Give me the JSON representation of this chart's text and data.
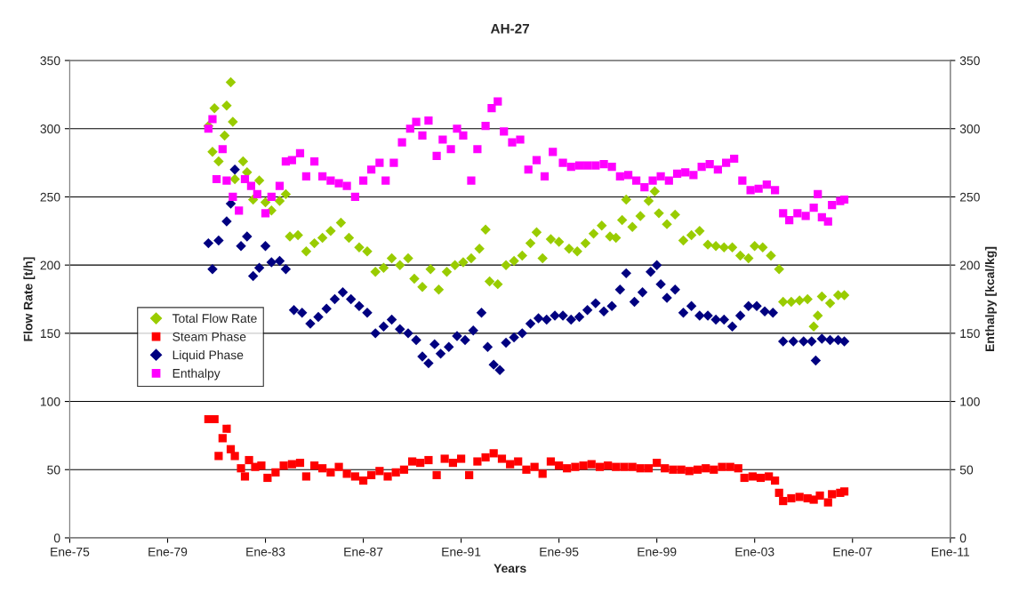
{
  "chart_data": {
    "type": "scatter",
    "title": "AH-27",
    "xlabel": "Years",
    "ylabel": "Flow Rate [t/h]",
    "y2label": "Enthalpy [kcal/kg]",
    "xlim": [
      "1975-01",
      "2011-01"
    ],
    "xticks": [
      {
        "value": "1975-01",
        "label": "Ene-75"
      },
      {
        "value": "1979-01",
        "label": "Ene-79"
      },
      {
        "value": "1983-01",
        "label": "Ene-83"
      },
      {
        "value": "1987-01",
        "label": "Ene-87"
      },
      {
        "value": "1991-01",
        "label": "Ene-91"
      },
      {
        "value": "1995-01",
        "label": "Ene-95"
      },
      {
        "value": "1999-01",
        "label": "Ene-99"
      },
      {
        "value": "2003-01",
        "label": "Ene-03"
      },
      {
        "value": "2007-01",
        "label": "Ene-07"
      },
      {
        "value": "2011-01",
        "label": "Ene-11"
      }
    ],
    "ylim": [
      0,
      350
    ],
    "yticks": [
      0,
      50,
      100,
      150,
      200,
      250,
      300,
      350
    ],
    "y2lim": [
      0,
      350
    ],
    "y2ticks": [
      0,
      50,
      100,
      150,
      200,
      250,
      300,
      350
    ],
    "grid": "y",
    "legend": "left",
    "series": [
      {
        "name": "Total Flow Rate",
        "color": "#99cc00",
        "marker": "diamond",
        "x": [
          "1980-09",
          "1980-11",
          "1980-12",
          "1981-02",
          "1981-05",
          "1981-06",
          "1981-08",
          "1981-09",
          "1981-10",
          "1982-02",
          "1982-04",
          "1982-07",
          "1982-10",
          "1983-01",
          "1983-04",
          "1983-08",
          "1983-11",
          "1984-01",
          "1984-05",
          "1984-09",
          "1985-01",
          "1985-05",
          "1985-09",
          "1986-02",
          "1986-06",
          "1986-11",
          "1987-03",
          "1987-07",
          "1987-11",
          "1988-03",
          "1988-07",
          "1988-11",
          "1989-02",
          "1989-06",
          "1989-10",
          "1990-02",
          "1990-06",
          "1990-10",
          "1991-02",
          "1991-06",
          "1991-10",
          "1992-01",
          "1992-03",
          "1992-07",
          "1992-11",
          "1993-03",
          "1993-07",
          "1993-11",
          "1994-02",
          "1994-05",
          "1994-09",
          "1995-01",
          "1995-06",
          "1995-10",
          "1996-02",
          "1996-06",
          "1996-10",
          "1997-02",
          "1997-05",
          "1997-08",
          "1997-10",
          "1998-01",
          "1998-05",
          "1998-09",
          "1998-12",
          "1999-02",
          "1999-06",
          "1999-10",
          "2000-02",
          "2000-06",
          "2000-10",
          "2001-02",
          "2001-06",
          "2001-10",
          "2002-02",
          "2002-06",
          "2002-10",
          "2003-01",
          "2003-05",
          "2003-09",
          "2004-01",
          "2004-03",
          "2004-07",
          "2004-11",
          "2005-03",
          "2005-06",
          "2005-08",
          "2005-10",
          "2006-02",
          "2006-06",
          "2006-09"
        ],
        "values": [
          302,
          283,
          315,
          276,
          295,
          317,
          334,
          305,
          263,
          276,
          268,
          248,
          262,
          246,
          240,
          247,
          252,
          221,
          222,
          210,
          216,
          220,
          225,
          231,
          220,
          213,
          210,
          195,
          198,
          205,
          200,
          205,
          190,
          184,
          197,
          182,
          195,
          200,
          202,
          205,
          212,
          226,
          188,
          186,
          200,
          203,
          207,
          216,
          224,
          205,
          219,
          217,
          212,
          210,
          216,
          223,
          229,
          221,
          220,
          233,
          248,
          228,
          236,
          247,
          254,
          238,
          230,
          237,
          218,
          222,
          225,
          215,
          214,
          213,
          213,
          207,
          205,
          214,
          213,
          207,
          197,
          173,
          173,
          174,
          175,
          155,
          163,
          177,
          172,
          178,
          178
        ]
      },
      {
        "name": "Steam Phase",
        "color": "#ff0000",
        "marker": "square",
        "x": [
          "1980-09",
          "1980-12",
          "1981-02",
          "1981-04",
          "1981-06",
          "1981-08",
          "1981-10",
          "1982-01",
          "1982-03",
          "1982-05",
          "1982-08",
          "1982-11",
          "1983-02",
          "1983-06",
          "1983-10",
          "1984-02",
          "1984-06",
          "1984-09",
          "1985-01",
          "1985-05",
          "1985-09",
          "1986-01",
          "1986-05",
          "1986-09",
          "1987-01",
          "1987-05",
          "1987-09",
          "1988-01",
          "1988-05",
          "1988-09",
          "1989-01",
          "1989-05",
          "1989-09",
          "1990-01",
          "1990-05",
          "1990-09",
          "1991-01",
          "1991-05",
          "1991-09",
          "1992-01",
          "1992-05",
          "1992-09",
          "1993-01",
          "1993-05",
          "1993-09",
          "1994-01",
          "1994-05",
          "1994-09",
          "1995-01",
          "1995-05",
          "1995-09",
          "1996-01",
          "1996-05",
          "1996-09",
          "1997-01",
          "1997-05",
          "1997-09",
          "1998-01",
          "1998-05",
          "1998-09",
          "1999-01",
          "1999-05",
          "1999-09",
          "2000-01",
          "2000-05",
          "2000-09",
          "2001-01",
          "2001-05",
          "2001-09",
          "2002-01",
          "2002-05",
          "2002-08",
          "2002-12",
          "2003-04",
          "2003-08",
          "2003-11",
          "2004-01",
          "2004-03",
          "2004-07",
          "2004-11",
          "2005-03",
          "2005-06",
          "2005-09",
          "2006-01",
          "2006-03",
          "2006-07",
          "2006-09"
        ],
        "values": [
          87,
          87,
          60,
          73,
          80,
          65,
          60,
          51,
          45,
          57,
          52,
          53,
          44,
          48,
          53,
          54,
          55,
          45,
          53,
          51,
          48,
          52,
          47,
          45,
          42,
          46,
          49,
          45,
          48,
          50,
          56,
          55,
          57,
          46,
          58,
          55,
          58,
          46,
          56,
          59,
          62,
          58,
          54,
          56,
          50,
          52,
          47,
          56,
          53,
          51,
          52,
          53,
          54,
          52,
          53,
          52,
          52,
          52,
          51,
          51,
          55,
          51,
          50,
          50,
          49,
          50,
          51,
          50,
          52,
          52,
          51,
          44,
          45,
          44,
          45,
          42,
          33,
          27,
          29,
          30,
          29,
          28,
          31,
          26,
          32,
          33,
          34
        ]
      },
      {
        "name": "Liquid Phase",
        "color": "#000080",
        "marker": "diamond",
        "x": [
          "1980-09",
          "1980-11",
          "1981-02",
          "1981-06",
          "1981-08",
          "1981-10",
          "1982-01",
          "1982-04",
          "1982-07",
          "1982-10",
          "1983-01",
          "1983-04",
          "1983-08",
          "1983-11",
          "1984-03",
          "1984-07",
          "1984-11",
          "1985-03",
          "1985-07",
          "1985-11",
          "1986-03",
          "1986-07",
          "1986-11",
          "1987-03",
          "1987-07",
          "1987-11",
          "1988-03",
          "1988-07",
          "1988-11",
          "1989-03",
          "1989-06",
          "1989-09",
          "1989-12",
          "1990-03",
          "1990-07",
          "1990-11",
          "1991-03",
          "1991-07",
          "1991-11",
          "1992-02",
          "1992-05",
          "1992-08",
          "1992-11",
          "1993-03",
          "1993-07",
          "1993-11",
          "1994-03",
          "1994-07",
          "1994-11",
          "1995-03",
          "1995-07",
          "1995-11",
          "1996-03",
          "1996-07",
          "1996-11",
          "1997-03",
          "1997-07",
          "1997-10",
          "1998-02",
          "1998-06",
          "1998-10",
          "1999-01",
          "1999-03",
          "1999-06",
          "1999-10",
          "2000-02",
          "2000-06",
          "2000-10",
          "2001-02",
          "2001-06",
          "2001-10",
          "2002-02",
          "2002-06",
          "2002-10",
          "2003-02",
          "2003-06",
          "2003-10",
          "2004-03",
          "2004-08",
          "2005-01",
          "2005-05",
          "2005-07",
          "2005-10",
          "2006-02",
          "2006-06",
          "2006-09"
        ],
        "values": [
          216,
          197,
          218,
          232,
          245,
          270,
          214,
          221,
          192,
          198,
          214,
          202,
          203,
          197,
          167,
          165,
          157,
          162,
          168,
          175,
          180,
          175,
          170,
          165,
          150,
          155,
          160,
          153,
          150,
          145,
          133,
          128,
          142,
          135,
          140,
          148,
          145,
          152,
          165,
          140,
          127,
          123,
          143,
          147,
          150,
          157,
          161,
          160,
          163,
          163,
          160,
          162,
          167,
          172,
          166,
          170,
          182,
          194,
          173,
          180,
          195,
          200,
          186,
          176,
          182,
          165,
          170,
          163,
          163,
          160,
          160,
          155,
          163,
          170,
          170,
          166,
          165,
          144,
          144,
          144,
          144,
          130,
          146,
          145,
          145,
          144
        ]
      },
      {
        "name": "Enthalpy",
        "color": "#ff00ff",
        "marker": "square",
        "x": [
          "1980-09",
          "1980-11",
          "1981-01",
          "1981-04",
          "1981-06",
          "1981-09",
          "1981-12",
          "1982-03",
          "1982-06",
          "1982-09",
          "1983-01",
          "1983-04",
          "1983-08",
          "1983-11",
          "1984-02",
          "1984-06",
          "1984-09",
          "1985-01",
          "1985-05",
          "1985-09",
          "1986-01",
          "1986-05",
          "1986-09",
          "1987-01",
          "1987-05",
          "1987-09",
          "1987-12",
          "1988-04",
          "1988-08",
          "1988-12",
          "1989-03",
          "1989-06",
          "1989-09",
          "1990-01",
          "1990-04",
          "1990-08",
          "1990-11",
          "1991-02",
          "1991-06",
          "1991-09",
          "1992-01",
          "1992-04",
          "1992-07",
          "1992-10",
          "1993-02",
          "1993-06",
          "1993-10",
          "1994-02",
          "1994-06",
          "1994-10",
          "1995-03",
          "1995-07",
          "1995-11",
          "1996-03",
          "1996-07",
          "1996-11",
          "1997-03",
          "1997-07",
          "1997-11",
          "1998-03",
          "1998-07",
          "1998-11",
          "1999-03",
          "1999-07",
          "1999-11",
          "2000-03",
          "2000-07",
          "2000-11",
          "2001-03",
          "2001-07",
          "2001-11",
          "2002-03",
          "2002-07",
          "2002-11",
          "2003-03",
          "2003-07",
          "2003-11",
          "2004-03",
          "2004-06",
          "2004-10",
          "2005-02",
          "2005-06",
          "2005-08",
          "2005-10",
          "2006-01",
          "2006-03",
          "2006-07",
          "2006-09"
        ],
        "values": [
          300,
          307,
          263,
          285,
          262,
          250,
          240,
          263,
          258,
          252,
          238,
          250,
          258,
          276,
          277,
          282,
          265,
          276,
          265,
          262,
          260,
          258,
          250,
          262,
          270,
          275,
          262,
          275,
          290,
          300,
          305,
          295,
          306,
          280,
          292,
          285,
          300,
          295,
          262,
          285,
          302,
          315,
          320,
          298,
          290,
          292,
          270,
          277,
          265,
          283,
          275,
          272,
          273,
          273,
          273,
          274,
          272,
          265,
          266,
          262,
          257,
          262,
          265,
          262,
          267,
          268,
          266,
          272,
          274,
          270,
          275,
          278,
          262,
          255,
          256,
          259,
          255,
          238,
          233,
          238,
          236,
          242,
          252,
          235,
          232,
          244,
          247,
          248
        ]
      }
    ]
  }
}
